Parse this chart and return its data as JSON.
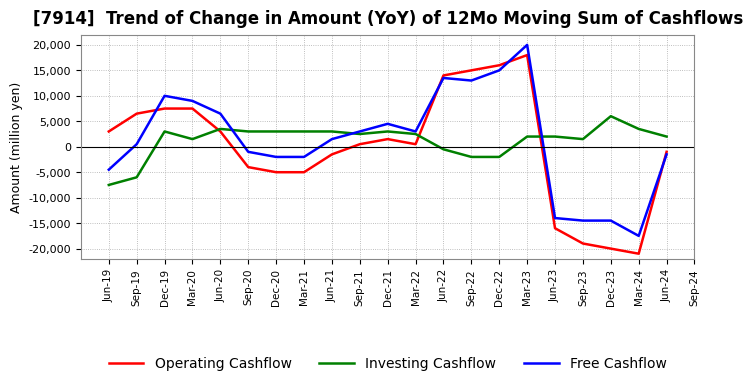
{
  "title": "[7914]  Trend of Change in Amount (YoY) of 12Mo Moving Sum of Cashflows",
  "ylabel": "Amount (million yen)",
  "x_labels": [
    "Jun-19",
    "Sep-19",
    "Dec-19",
    "Mar-20",
    "Jun-20",
    "Sep-20",
    "Dec-20",
    "Mar-21",
    "Jun-21",
    "Sep-21",
    "Dec-21",
    "Mar-22",
    "Jun-22",
    "Sep-22",
    "Dec-22",
    "Mar-23",
    "Jun-23",
    "Sep-23",
    "Dec-23",
    "Mar-24",
    "Jun-24",
    "Sep-24"
  ],
  "operating": [
    3000,
    6500,
    7500,
    7500,
    3000,
    -4000,
    -5000,
    -5000,
    -1500,
    500,
    1500,
    500,
    14000,
    15000,
    16000,
    18000,
    -16000,
    -19000,
    -20000,
    -21000,
    -1000,
    null
  ],
  "investing": [
    -7500,
    -6000,
    3000,
    1500,
    3500,
    3000,
    3000,
    3000,
    3000,
    2500,
    3000,
    2500,
    -500,
    -2000,
    -2000,
    2000,
    2000,
    1500,
    6000,
    3500,
    2000,
    null
  ],
  "free": [
    -4500,
    500,
    10000,
    9000,
    6500,
    -1000,
    -2000,
    -2000,
    1500,
    3000,
    4500,
    3000,
    13500,
    13000,
    15000,
    20000,
    -14000,
    -14500,
    -14500,
    -17500,
    -1500,
    null
  ],
  "operating_color": "#ff0000",
  "investing_color": "#008000",
  "free_color": "#0000ff",
  "ylim": [
    -22000,
    22000
  ],
  "yticks": [
    -20000,
    -15000,
    -10000,
    -5000,
    0,
    5000,
    10000,
    15000,
    20000
  ],
  "grid_color": "#aaaaaa",
  "background_color": "#ffffff",
  "title_fontsize": 12,
  "axis_fontsize": 9,
  "legend_fontsize": 10
}
